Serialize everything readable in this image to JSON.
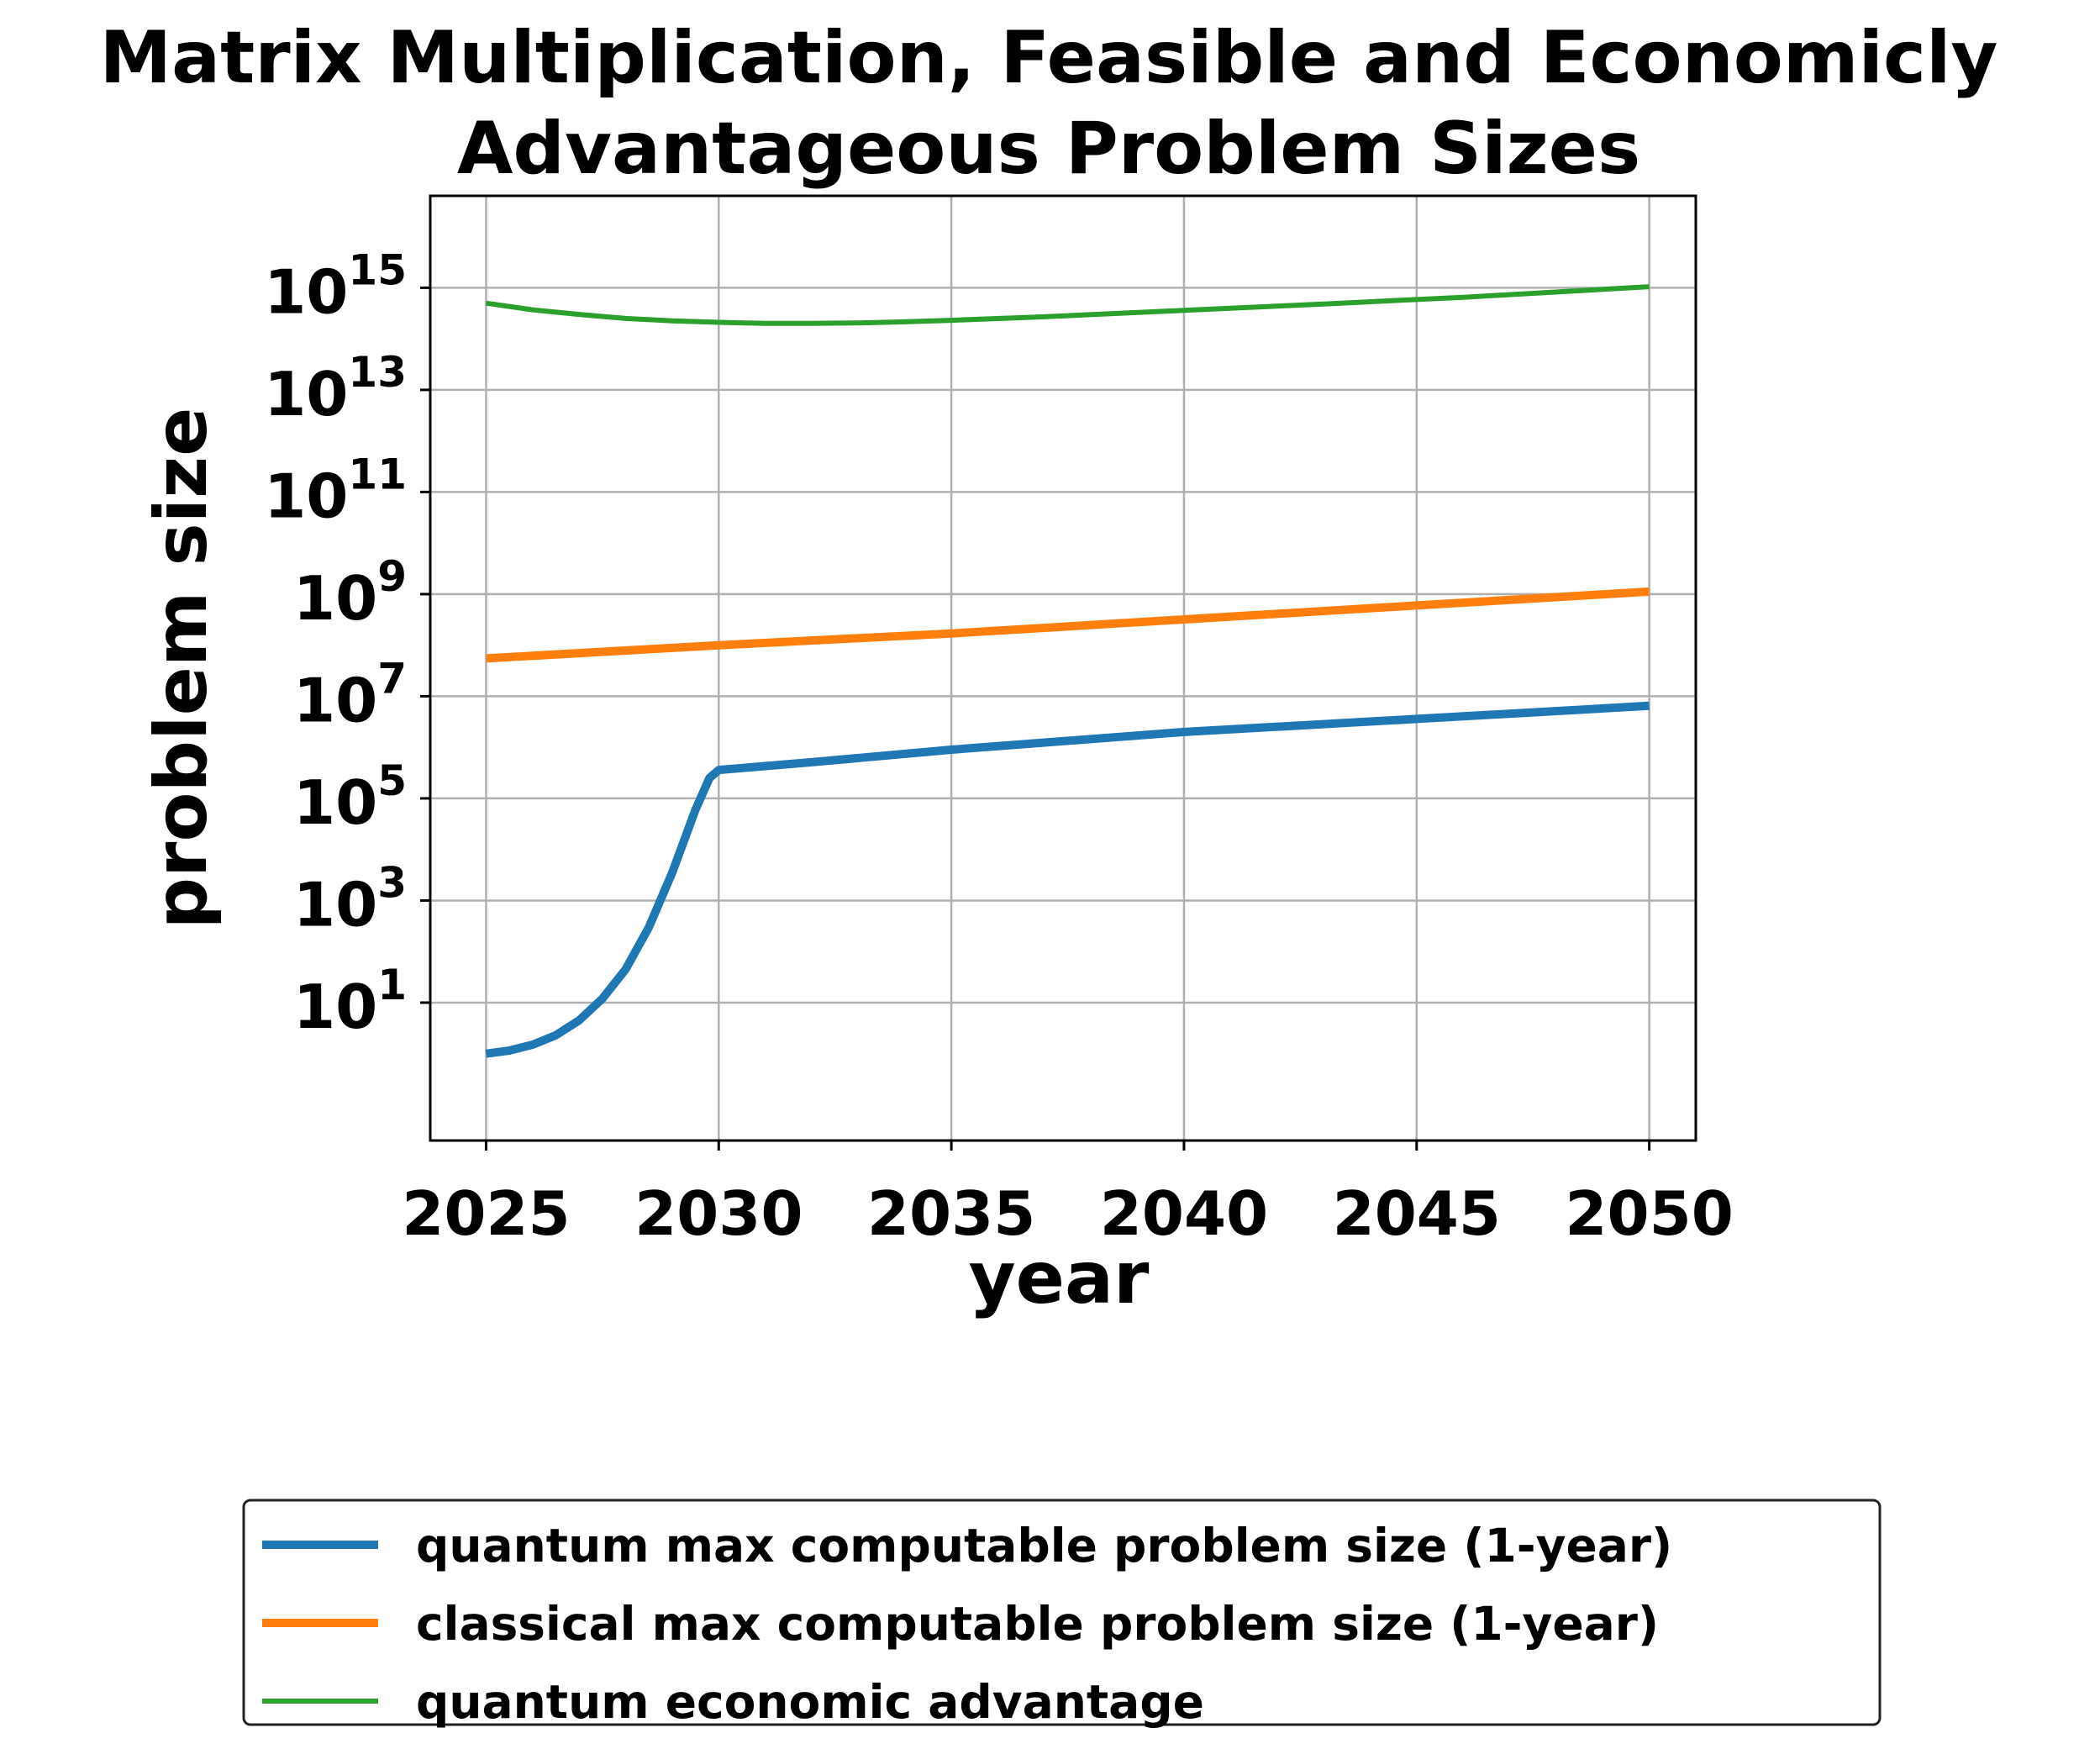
{
  "chart_data": {
    "type": "line",
    "title": "Matrix Multiplication, Feasible and Economicly Advantageous Problem Sizes",
    "title_lines": [
      "Matrix Multiplication, Feasible and Economicly",
      "Advantageous Problem Sizes"
    ],
    "xlabel": "year",
    "ylabel": "problem size",
    "xlim": [
      2023.8,
      2051.0
    ],
    "ylim_log10": [
      -1.7,
      16.8
    ],
    "y_scale": "log",
    "grid": true,
    "legend_position": "bottom-center, below the plot",
    "x_ticks": [
      {
        "value": 2025,
        "label": "2025"
      },
      {
        "value": 2030,
        "label": "2030"
      },
      {
        "value": 2035,
        "label": "2035"
      },
      {
        "value": 2040,
        "label": "2040"
      },
      {
        "value": 2045,
        "label": "2045"
      },
      {
        "value": 2050,
        "label": "2050"
      }
    ],
    "y_ticks": [
      {
        "exp": 1,
        "base": "10",
        "sup": "1"
      },
      {
        "exp": 3,
        "base": "10",
        "sup": "3"
      },
      {
        "exp": 5,
        "base": "10",
        "sup": "5"
      },
      {
        "exp": 7,
        "base": "10",
        "sup": "7"
      },
      {
        "exp": 9,
        "base": "10",
        "sup": "9"
      },
      {
        "exp": 11,
        "base": "10",
        "sup": "11"
      },
      {
        "exp": 13,
        "base": "10",
        "sup": "13"
      },
      {
        "exp": 15,
        "base": "10",
        "sup": "15"
      }
    ],
    "series": [
      {
        "name": "quantum max computable problem size (1-year)",
        "color": "#1f77b4",
        "x": [
          2025,
          2025.5,
          2026,
          2026.5,
          2027,
          2027.5,
          2028,
          2028.5,
          2029,
          2029.5,
          2029.8,
          2030,
          2032,
          2035,
          2040,
          2045,
          2050
        ],
        "y": [
          1,
          1.15,
          1.5,
          2.3,
          4.5,
          12,
          45,
          300,
          3500,
          60000,
          250000,
          360000,
          510000,
          900000,
          2000000,
          3600000,
          6500000
        ]
      },
      {
        "name": "classical max computable problem size (1-year)",
        "color": "#ff7f0e",
        "x": [
          2025,
          2030,
          2035,
          2040,
          2045,
          2050
        ],
        "y": [
          55000000,
          100000000,
          170000000,
          320000000,
          600000000,
          1120000000
        ]
      },
      {
        "name": "quantum economic advantage",
        "color": "#2ca02c",
        "x": [
          2025,
          2026,
          2027,
          2028,
          2029,
          2030,
          2031,
          2032,
          2033,
          2034,
          2035,
          2037,
          2040,
          2043,
          2046,
          2050
        ],
        "y": [
          500000000000000,
          370000000000000,
          300000000000000,
          250000000000000,
          225000000000000,
          210000000000000,
          200000000000000,
          200000000000000,
          205000000000000,
          215000000000000,
          230000000000000,
          270000000000000,
          360000000000000,
          480000000000000,
          650000000000000,
          1050000000000000
        ]
      }
    ]
  }
}
